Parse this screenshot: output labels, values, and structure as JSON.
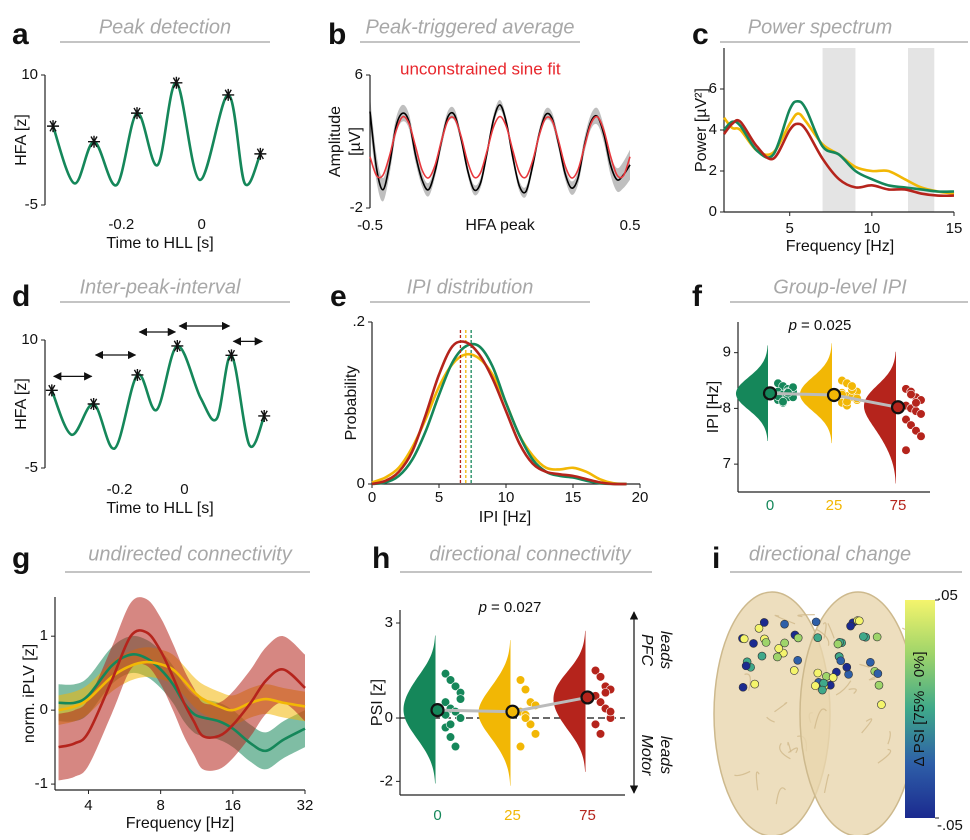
{
  "chart_data": [
    {
      "type": "line",
      "panel": "a",
      "title": "Peak detection",
      "xlabel": "Time to HLL [s]",
      "ylabel": [
        "HFA [z]"
      ],
      "x": [
        -0.37,
        -0.317,
        -0.268,
        -0.212,
        -0.161,
        -0.11,
        -0.063,
        -0.005,
        0.066,
        0.107,
        0.146
      ],
      "series": [
        {
          "color": "#15875a",
          "values": [
            4.1,
            -2.5,
            2.3,
            -2.7,
            5.6,
            -0.4,
            9.1,
            -2.1,
            7.7,
            -2.5,
            0.9
          ]
        }
      ],
      "peaks_x": [
        -0.37,
        -0.268,
        -0.161,
        -0.063,
        0.066,
        0.146
      ],
      "peaks": [
        4.1,
        2.3,
        5.6,
        9.1,
        7.7,
        0.9
      ],
      "xlim": [
        -0.39,
        0.17
      ],
      "xticks": [
        -0.2,
        0
      ],
      "ylim": [
        -5,
        10
      ],
      "yticks": [
        -5,
        10
      ]
    },
    {
      "type": "line",
      "panel": "b",
      "title": "Peak-triggered average",
      "xlabel": "HFA peak",
      "ylabel": [
        "Amplitude",
        "[µV]"
      ],
      "annotation": "unconstrained sine fit",
      "x": [
        -0.5,
        -0.475,
        -0.45,
        -0.425,
        -0.4,
        -0.375,
        -0.35,
        -0.325,
        -0.3,
        -0.275,
        -0.25,
        -0.225,
        -0.2,
        -0.175,
        -0.15,
        -0.125,
        -0.1,
        -0.075,
        -0.05,
        -0.025,
        0,
        0.025,
        0.05,
        0.075,
        0.1,
        0.125,
        0.15,
        0.175,
        0.2,
        0.225,
        0.25,
        0.275,
        0.3,
        0.325,
        0.35,
        0.375,
        0.4,
        0.425,
        0.45,
        0.475,
        0.5
      ],
      "series": [
        {
          "color": "#000000",
          "values": [
            3.8,
            0.4,
            -0.9,
            0.6,
            2.9,
            3.7,
            3.2,
            1.2,
            -0.3,
            -0.9,
            0.2,
            2.0,
            3.5,
            3.6,
            2.2,
            0.3,
            -0.9,
            -0.5,
            1.3,
            3.3,
            4.2,
            3.1,
            1.0,
            -0.7,
            -1.0,
            0.5,
            2.4,
            3.6,
            3.4,
            1.9,
            0.1,
            -0.8,
            -0.2,
            1.8,
            3.2,
            3.5,
            2.4,
            0.6,
            -0.3,
            0.0,
            0.6
          ],
          "error": [
            0.9,
            0.8,
            0.7,
            0.6,
            0.5,
            0.5,
            0.45,
            0.45,
            0.4,
            0.4,
            0.35,
            0.35,
            0.35,
            0.35,
            0.3,
            0.3,
            0.3,
            0.3,
            0.3,
            0.3,
            0.3,
            0.3,
            0.3,
            0.3,
            0.3,
            0.3,
            0.3,
            0.35,
            0.35,
            0.35,
            0.35,
            0.4,
            0.4,
            0.45,
            0.45,
            0.5,
            0.5,
            0.6,
            0.7,
            0.8,
            0.9
          ]
        },
        {
          "color": "#e8383d",
          "values": [
            1.08,
            -0.05,
            -0.02,
            1.13,
            2.64,
            3.48,
            3.08,
            1.71,
            0.3,
            -0.19,
            0.56,
            2.05,
            3.27,
            3.39,
            2.33,
            0.81,
            -0.14,
            0.12,
            1.42,
            2.87,
            3.5,
            2.87,
            1.42,
            0.12,
            -0.14,
            0.81,
            2.33,
            3.39,
            3.27,
            2.05,
            0.56,
            -0.19,
            0.3,
            1.71,
            3.08,
            3.48,
            2.64,
            1.13,
            -0.02,
            -0.05,
            1.08
          ]
        }
      ],
      "xlim": [
        -0.5,
        0.5
      ],
      "xticks": [
        -0.5,
        0.5
      ],
      "ylim": [
        -2,
        6
      ],
      "yticks": [
        -2,
        6
      ]
    },
    {
      "type": "line",
      "panel": "c",
      "title": "Power spectrum",
      "xlabel": "Frequency [Hz]",
      "ylabel": [
        "Power [µV²]"
      ],
      "shaded": [
        [
          7,
          9
        ],
        [
          12.2,
          13.8
        ]
      ],
      "x": [
        1,
        1.5,
        2,
        3,
        4,
        5,
        5.5,
        6,
        7,
        8,
        9,
        10,
        11,
        12,
        13,
        14,
        15
      ],
      "series": [
        {
          "color": "#f2b705",
          "values": [
            4.6,
            4.1,
            4.0,
            3.0,
            2.9,
            4.3,
            4.8,
            4.4,
            3.3,
            2.8,
            2.2,
            2.0,
            2.0,
            1.6,
            1.2,
            1.0,
            0.9
          ]
        },
        {
          "color": "#15875a",
          "values": [
            4.0,
            4.4,
            4.2,
            3.0,
            2.8,
            5.0,
            5.4,
            5.0,
            3.2,
            2.8,
            2.0,
            1.6,
            1.3,
            1.2,
            1.1,
            1.0,
            1.0
          ]
        },
        {
          "color": "#b5241c",
          "values": [
            3.8,
            4.3,
            4.4,
            3.2,
            2.6,
            4.0,
            4.3,
            4.0,
            2.6,
            1.6,
            1.2,
            1.3,
            1.1,
            1.1,
            0.9,
            0.8,
            0.8
          ]
        }
      ],
      "xlim": [
        1,
        15
      ],
      "xticks": [
        5,
        10,
        15
      ],
      "ylim": [
        0,
        8
      ],
      "yticks": [
        0,
        2,
        4,
        6
      ]
    },
    {
      "type": "line",
      "panel": "d",
      "title": "Inter-peak-interval",
      "xlabel": "Time to HLL [s]",
      "ylabel": [
        "HFA [z]"
      ],
      "x": [
        -0.409,
        -0.348,
        -0.28,
        -0.215,
        -0.145,
        -0.086,
        -0.022,
        0.05,
        0.1,
        0.145,
        0.2,
        0.246
      ],
      "series": [
        {
          "color": "#15875a",
          "values": [
            4.1,
            -1.1,
            2.5,
            -2.7,
            5.9,
            1.8,
            9.3,
            3.2,
            0.8,
            8.2,
            -2.3,
            1.1
          ]
        }
      ],
      "peaks_x": [
        -0.409,
        -0.28,
        -0.145,
        -0.022,
        0.145,
        0.246
      ],
      "peaks": [
        4.1,
        2.5,
        5.9,
        9.3,
        8.2,
        1.1
      ],
      "intervals": true,
      "xlim": [
        -0.43,
        0.27
      ],
      "xticks": [
        -0.2,
        0
      ],
      "ylim": [
        -5,
        10
      ],
      "yticks": [
        -5,
        10
      ]
    },
    {
      "type": "line",
      "panel": "e",
      "title": "IPI distribution",
      "xlabel": "IPI [Hz]",
      "ylabel": [
        "Probability"
      ],
      "x": [
        0,
        1,
        2,
        3,
        4,
        5,
        6,
        7,
        8,
        9,
        10,
        11,
        12,
        13,
        14,
        15,
        16,
        17,
        18,
        19
      ],
      "series": [
        {
          "color": "#f2b705",
          "mean": 7.0,
          "values": [
            0.002,
            0.008,
            0.02,
            0.045,
            0.08,
            0.12,
            0.148,
            0.16,
            0.155,
            0.135,
            0.1,
            0.06,
            0.035,
            0.02,
            0.018,
            0.02,
            0.015,
            0.006,
            0.001,
            0
          ]
        },
        {
          "color": "#15875a",
          "mean": 7.4,
          "values": [
            0,
            0.002,
            0.01,
            0.03,
            0.065,
            0.11,
            0.15,
            0.17,
            0.17,
            0.145,
            0.1,
            0.06,
            0.03,
            0.015,
            0.01,
            0.008,
            0.004,
            0.001,
            0,
            0
          ]
        },
        {
          "color": "#b5241c",
          "mean": 6.6,
          "values": [
            0,
            0.004,
            0.015,
            0.04,
            0.085,
            0.135,
            0.17,
            0.175,
            0.16,
            0.13,
            0.09,
            0.05,
            0.025,
            0.015,
            0.012,
            0.01,
            0.006,
            0.002,
            0,
            0
          ]
        }
      ],
      "xlim": [
        0,
        20
      ],
      "xticks": [
        0,
        5,
        10,
        15,
        20
      ],
      "ylim": [
        0,
        0.2
      ],
      "yticks": [
        0,
        {
          "value": 0.2,
          "label": ".2"
        }
      ]
    },
    {
      "type": "violin",
      "panel": "f",
      "title": "Group-level IPI",
      "ylabel": [
        "IPI [Hz]"
      ],
      "annotation": {
        "symbol": "p",
        "text": "= 0.025"
      },
      "categories": [
        "0",
        "25",
        "75"
      ],
      "series": [
        {
          "color": "#15875a",
          "mean": 8.27,
          "values": [
            8.45,
            8.4,
            8.35,
            8.3,
            8.3,
            8.25,
            8.2,
            8.2,
            8.15,
            8.1,
            8.3,
            8.38,
            8.22,
            8.12,
            8.28
          ]
        },
        {
          "color": "#f2b705",
          "mean": 8.24,
          "values": [
            8.5,
            8.45,
            8.35,
            8.3,
            8.28,
            8.22,
            8.2,
            8.15,
            8.1,
            8.05,
            8.33,
            8.18,
            8.25,
            8.12,
            8.4
          ]
        },
        {
          "color": "#b5241c",
          "mean": 8.02,
          "values": [
            8.35,
            8.3,
            8.2,
            8.15,
            8.05,
            8.0,
            7.95,
            7.9,
            7.8,
            7.7,
            7.6,
            7.5,
            7.25,
            8.25,
            8.1
          ]
        }
      ],
      "ylim": [
        6.5,
        9.55
      ],
      "yticks": [
        7,
        8,
        9
      ]
    },
    {
      "type": "line",
      "panel": "g",
      "title": "undirected connectivity",
      "xlabel": "Frequency [Hz]",
      "ylabel": [
        "norm. iPLV [z]"
      ],
      "xscale": "log",
      "x": [
        3,
        3.5,
        4,
        5,
        6,
        7,
        8,
        9,
        10,
        11,
        12,
        14,
        16,
        19,
        22,
        26,
        32
      ],
      "series": [
        {
          "color": "#15875a",
          "values": [
            0.1,
            0.1,
            0.2,
            0.6,
            0.75,
            0.7,
            0.55,
            0.35,
            0.1,
            -0.05,
            -0.1,
            -0.15,
            -0.25,
            -0.45,
            -0.55,
            -0.4,
            -0.25
          ],
          "error": [
            0.25,
            0.25,
            0.25,
            0.25,
            0.25,
            0.25,
            0.25,
            0.25,
            0.25,
            0.25,
            0.25,
            0.25,
            0.25,
            0.25,
            0.25,
            0.25,
            0.25
          ]
        },
        {
          "color": "#f2b705",
          "values": [
            0,
            0.05,
            0.15,
            0.45,
            0.6,
            0.65,
            0.62,
            0.55,
            0.4,
            0.25,
            0.15,
            0.05,
            0.0,
            0.1,
            0.15,
            0.1,
            0.05
          ],
          "error": [
            0.2,
            0.2,
            0.2,
            0.2,
            0.2,
            0.2,
            0.2,
            0.2,
            0.2,
            0.2,
            0.2,
            0.2,
            0.2,
            0.2,
            0.2,
            0.2,
            0.2
          ]
        },
        {
          "color": "#b5241c",
          "values": [
            -0.5,
            -0.45,
            -0.3,
            0.4,
            1.0,
            1.05,
            0.8,
            0.45,
            0.1,
            -0.15,
            -0.35,
            -0.35,
            -0.2,
            0.1,
            0.4,
            0.55,
            0.3
          ],
          "error": [
            0.45,
            0.45,
            0.45,
            0.45,
            0.45,
            0.45,
            0.45,
            0.45,
            0.45,
            0.45,
            0.45,
            0.45,
            0.45,
            0.45,
            0.45,
            0.45,
            0.45
          ]
        }
      ],
      "xlim": [
        2.9,
        32
      ],
      "xticks": [
        4,
        8,
        16,
        32
      ],
      "ylim": [
        -1.08,
        1.53
      ],
      "yticks": [
        -1,
        0,
        1
      ]
    },
    {
      "type": "violin",
      "panel": "h",
      "title": "directional connectivity",
      "ylabel": [
        "PSI [z]"
      ],
      "annotation": {
        "symbol": "p",
        "text": "= 0.027"
      },
      "side_labels": {
        "top": [
          "PFC",
          "leads"
        ],
        "bottom": [
          "Motor",
          "leads"
        ]
      },
      "hline": 0,
      "categories": [
        "0",
        "25",
        "75"
      ],
      "series": [
        {
          "color": "#15875a",
          "mean": 0.25,
          "values": [
            1.4,
            1.2,
            1.0,
            0.8,
            0.5,
            0.3,
            0.2,
            0.0,
            -0.3,
            -0.6,
            -0.9,
            0.6,
            0.1,
            -0.2
          ]
        },
        {
          "color": "#f2b705",
          "mean": 0.2,
          "values": [
            1.2,
            0.9,
            0.5,
            0.4,
            0.2,
            0.1,
            -0.2,
            -0.5,
            -0.9,
            0.0
          ]
        },
        {
          "color": "#b5241c",
          "mean": 0.65,
          "values": [
            1.5,
            1.3,
            1.0,
            0.9,
            0.7,
            0.5,
            0.3,
            0.0,
            -0.2,
            -0.5,
            0.8,
            0.2
          ]
        }
      ],
      "ylim": [
        -2.43,
        3.41
      ],
      "yticks": [
        -2,
        0,
        3
      ]
    },
    {
      "type": "brain",
      "panel": "i",
      "title": "directional change",
      "colorbar": {
        "label": "Δ PSI [75% - 0%]",
        "lim": [
          -0.05,
          0.05
        ],
        "ticks": [
          {
            "value": -0.05,
            "label": "-.05"
          },
          {
            "value": 0.05,
            "label": ".05"
          }
        ]
      }
    }
  ]
}
